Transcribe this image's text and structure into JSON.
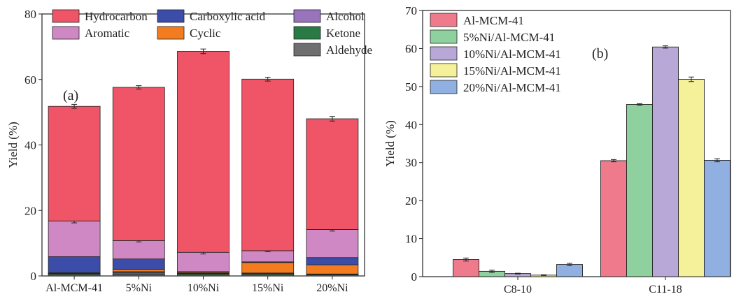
{
  "chart_data": [
    {
      "type": "bar",
      "stacked": true,
      "panel_label": "(a)",
      "title": "",
      "xlabel": "",
      "ylabel": "Yield (%)",
      "ylim": [
        0,
        80
      ],
      "yticks": [
        0,
        20,
        40,
        60,
        80
      ],
      "categories": [
        "Al-MCM-41",
        "5%Ni",
        "10%Ni",
        "15%Ni",
        "20%Ni"
      ],
      "legend_placement": "top",
      "series": [
        {
          "name": "Aldehyde",
          "color": "#6f6f6f",
          "values": [
            0.4,
            0.5,
            0.4,
            0.4,
            0.3
          ]
        },
        {
          "name": "Ketone",
          "color": "#2a7a45",
          "values": [
            0.3,
            0.5,
            0.3,
            0.3,
            0.2
          ]
        },
        {
          "name": "Alcohol",
          "color": "#9a73bd",
          "values": [
            0.1,
            0.3,
            0.1,
            0.2,
            0.1
          ]
        },
        {
          "name": "Cyclic",
          "color": "#f47c20",
          "values": [
            0.2,
            0.7,
            0.3,
            3.2,
            2.8
          ]
        },
        {
          "name": "Carboxylic acid",
          "color": "#3b4da8",
          "values": [
            4.9,
            3.2,
            0.2,
            0.2,
            2.2
          ]
        },
        {
          "name": "Aromatic",
          "color": "#cf88c4",
          "values": [
            10.9,
            5.6,
            5.9,
            3.4,
            8.6
          ]
        },
        {
          "name": "Hydrocarbon",
          "color": "#ef5567",
          "values": [
            35.0,
            46.8,
            61.4,
            52.4,
            33.8
          ]
        }
      ],
      "legend_order": [
        "Hydrocarbon",
        "Carboxylic acid",
        "Alcohol",
        "Aromatic",
        "Cyclic",
        "Ketone",
        "Aldehyde"
      ],
      "error_bars_at_totals": {
        "Aromatic": [
          0.6,
          0.4,
          0.5,
          0.3,
          0.5
        ],
        "Hydrocarbon": [
          0.6,
          0.5,
          0.7,
          0.6,
          0.7
        ]
      }
    },
    {
      "type": "bar",
      "stacked": false,
      "panel_label": "(b)",
      "title": "",
      "xlabel": "",
      "ylabel": "Yield (%)",
      "ylim": [
        0,
        70
      ],
      "yticks": [
        0,
        10,
        20,
        30,
        40,
        50,
        60,
        70
      ],
      "categories": [
        "C8-10",
        "C11-18"
      ],
      "legend_placement": "top-left",
      "series": [
        {
          "name": "Al-MCM-41",
          "color": "#ef7a8c",
          "values": [
            4.5,
            30.5
          ],
          "errors": [
            0.4,
            0.3
          ]
        },
        {
          "name": "5%Ni/Al-MCM-41",
          "color": "#8fd19e",
          "values": [
            1.4,
            45.3
          ],
          "errors": [
            0.3,
            0.2
          ]
        },
        {
          "name": "10%Ni/Al-MCM-41",
          "color": "#b8a8d8",
          "values": [
            0.8,
            60.4
          ],
          "errors": [
            0.1,
            0.3
          ]
        },
        {
          "name": "15%Ni/Al-MCM-41",
          "color": "#f5f09a",
          "values": [
            0.4,
            51.9
          ],
          "errors": [
            0.1,
            0.6
          ]
        },
        {
          "name": "20%Ni/Al-MCM-41",
          "color": "#8fb0e0",
          "values": [
            3.2,
            30.6
          ],
          "errors": [
            0.3,
            0.4
          ]
        }
      ]
    }
  ]
}
